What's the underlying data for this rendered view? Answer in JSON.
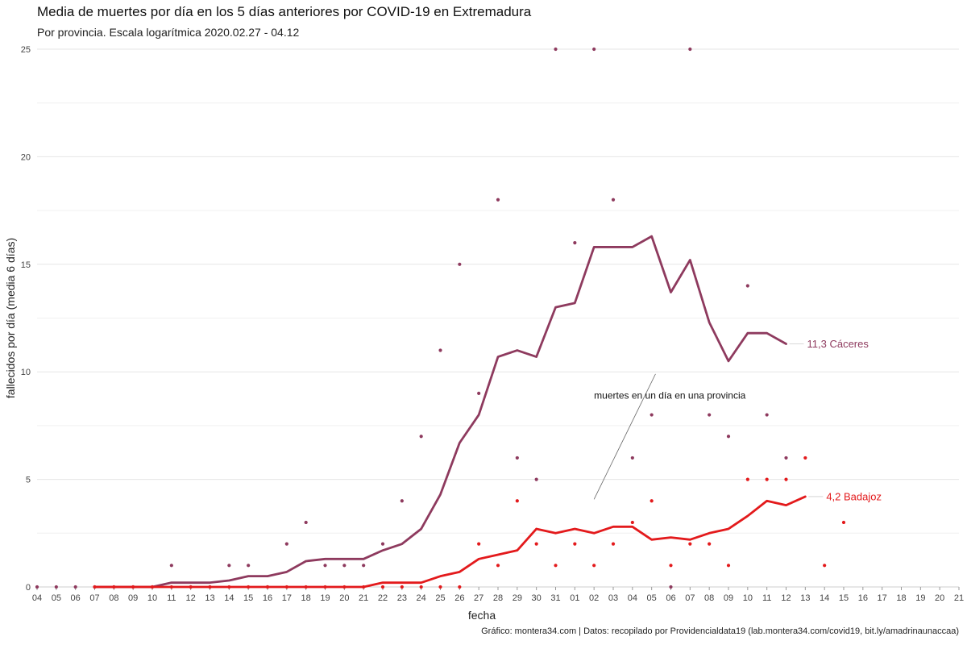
{
  "chart_data": {
    "type": "line",
    "title": "Media de muertes por día en los 5 días anteriores por COVID-19 en Extremadura",
    "subtitle": "Por provincia. Escala logarítmica  2020.02.27 - 04.12",
    "xlabel": "fecha",
    "ylabel": "fallecidos por día (media 6 días)",
    "caption": "Gráfico: montera34.com | Datos: recopilado por Providencialdata19 (lab.montera34.com/covid19, bit.ly/amadrinaunaccaa)",
    "annotation": "muertes en un día en una provincia",
    "ylim": [
      0,
      25
    ],
    "yticks": [
      0,
      5,
      10,
      15,
      20,
      25
    ],
    "grid": true,
    "categories": [
      "04",
      "05",
      "06",
      "07",
      "08",
      "09",
      "10",
      "11",
      "12",
      "13",
      "14",
      "15",
      "16",
      "17",
      "18",
      "19",
      "20",
      "21",
      "22",
      "23",
      "24",
      "25",
      "26",
      "27",
      "28",
      "29",
      "30",
      "31",
      "01",
      "02",
      "03",
      "04",
      "05",
      "06",
      "07",
      "08",
      "09",
      "10",
      "11",
      "12",
      "13",
      "14",
      "15",
      "16",
      "17",
      "18",
      "19",
      "20",
      "21"
    ],
    "series": [
      {
        "name": "Cáceres",
        "end_label": "11,3 Cáceres",
        "color": "#8e3a5e",
        "line_start_index": 3,
        "line": [
          0,
          0,
          0,
          0,
          0.2,
          0.2,
          0.2,
          0.3,
          0.5,
          0.5,
          0.7,
          1.2,
          1.3,
          1.3,
          1.3,
          1.7,
          2.0,
          2.7,
          4.3,
          6.7,
          8.0,
          10.7,
          11.0,
          10.7,
          13.0,
          13.2,
          15.8,
          15.8,
          15.8,
          16.3,
          13.7,
          15.2,
          12.3,
          10.5,
          11.8,
          11.8,
          11.3
        ],
        "point_start_index": 0,
        "points": [
          0,
          0,
          0,
          0,
          0,
          0,
          0,
          1,
          0,
          0,
          1,
          1,
          0,
          2,
          3,
          1,
          1,
          1,
          2,
          4,
          7,
          11,
          15,
          9,
          18,
          6,
          5,
          25,
          16,
          25,
          18,
          6,
          8,
          0,
          25,
          8,
          7,
          14,
          8,
          6
        ]
      },
      {
        "name": "Badajoz",
        "end_label": "4,2 Badajoz",
        "color": "#e31a1c",
        "line_start_index": 3,
        "line": [
          0,
          0,
          0,
          0,
          0,
          0,
          0,
          0,
          0,
          0,
          0,
          0,
          0,
          0,
          0,
          0.2,
          0.2,
          0.2,
          0.5,
          0.7,
          1.3,
          1.5,
          1.7,
          2.7,
          2.5,
          2.7,
          2.5,
          2.8,
          2.8,
          2.2,
          2.3,
          2.2,
          2.5,
          2.7,
          3.3,
          4.0,
          3.8,
          4.2
        ],
        "point_start_index": 3,
        "points": [
          0,
          0,
          0,
          0,
          0,
          0,
          0,
          0,
          0,
          0,
          0,
          0,
          0,
          0,
          0,
          0,
          0,
          0,
          0,
          0,
          2,
          1,
          4,
          2,
          1,
          2,
          1,
          2,
          3,
          4,
          1,
          2,
          2,
          1,
          5,
          5,
          5,
          6,
          1,
          3
        ]
      }
    ]
  }
}
